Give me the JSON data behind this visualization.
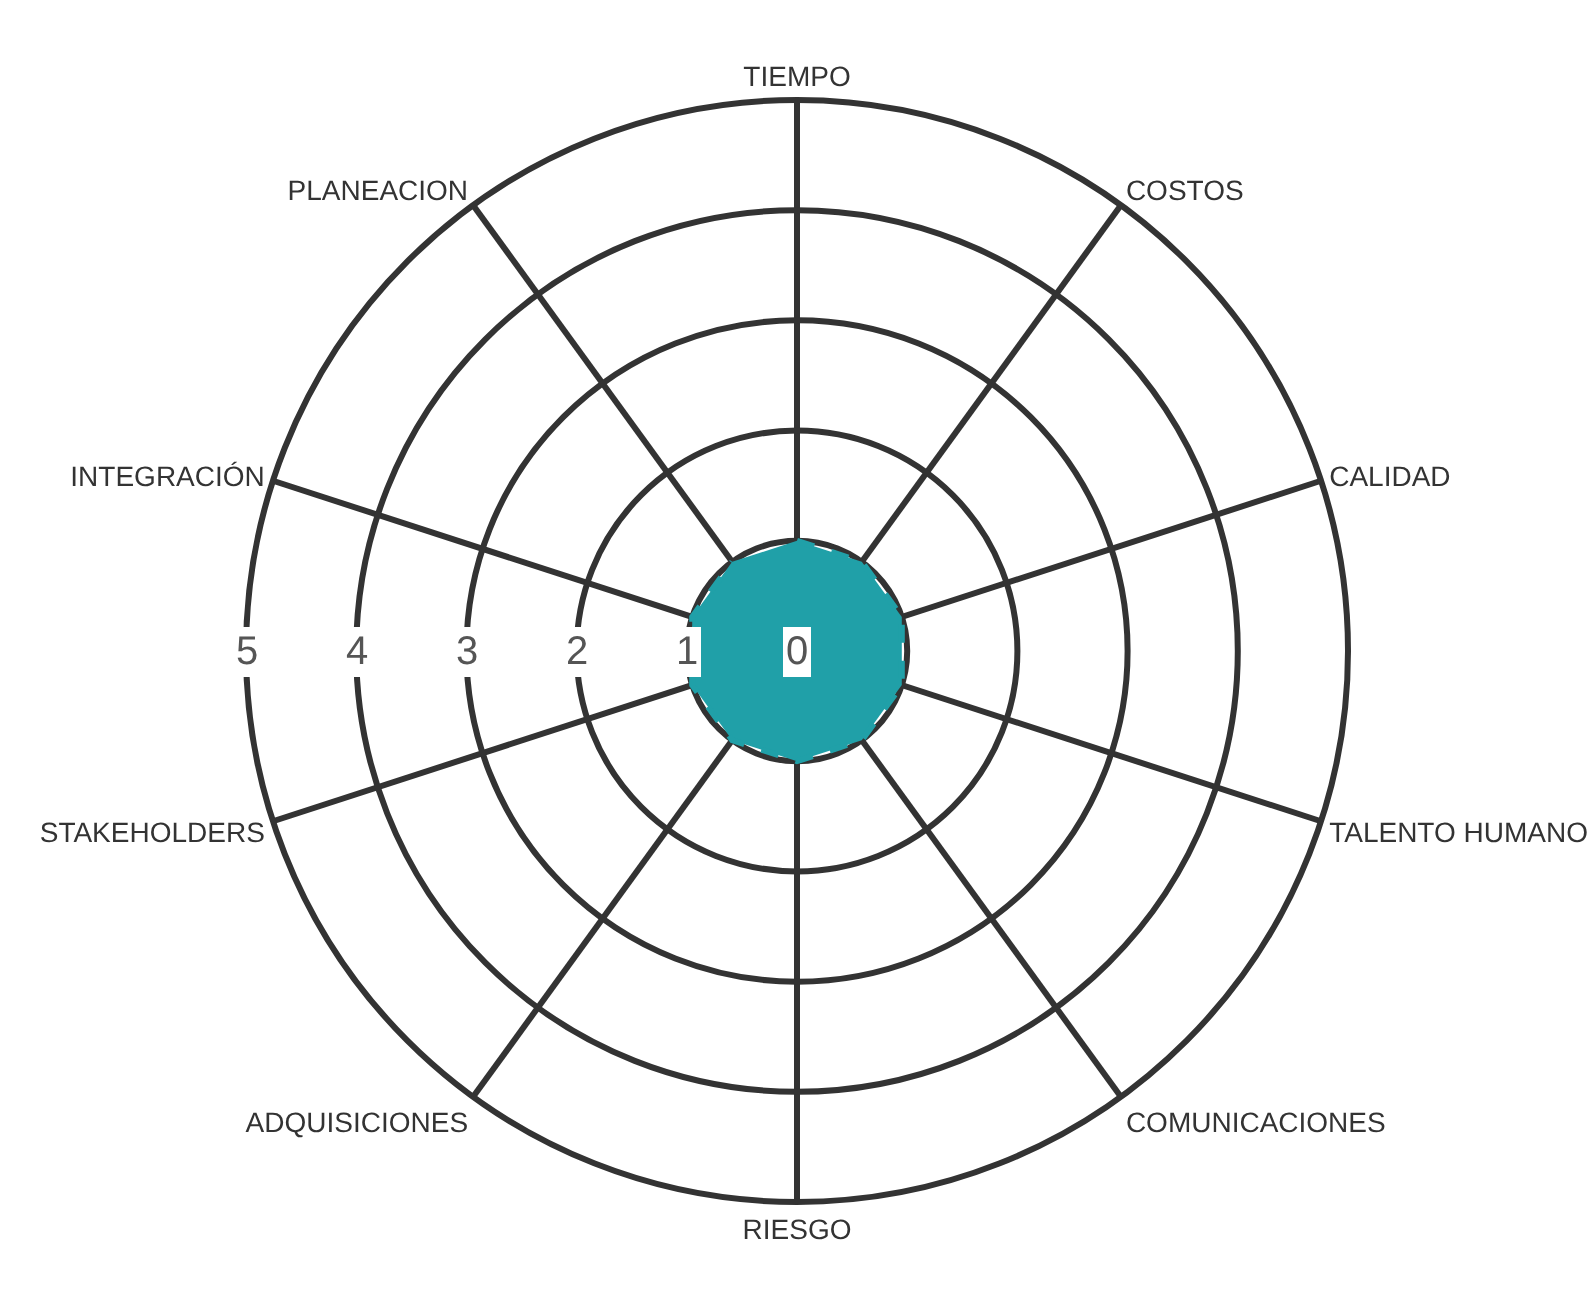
{
  "chart_data": {
    "type": "radar",
    "categories": [
      "TIEMPO",
      "COSTOS",
      "CALIDAD",
      "TALENTO HUMANO",
      "COMUNICACIONES",
      "RIESGO",
      "ADQUISICIONES",
      "STAKEHOLDERS",
      "INTEGRACIÓN",
      "PLANEACION"
    ],
    "series": [
      {
        "color": "#20a0a8",
        "values": [
          1,
          1,
          1,
          1,
          1,
          1,
          1,
          1,
          1,
          1
        ]
      }
    ],
    "ylim": [
      0,
      5
    ],
    "yticks": [
      0,
      1,
      2,
      3,
      4,
      5
    ],
    "grid": true,
    "marker": "none",
    "line_style": "dashed"
  }
}
